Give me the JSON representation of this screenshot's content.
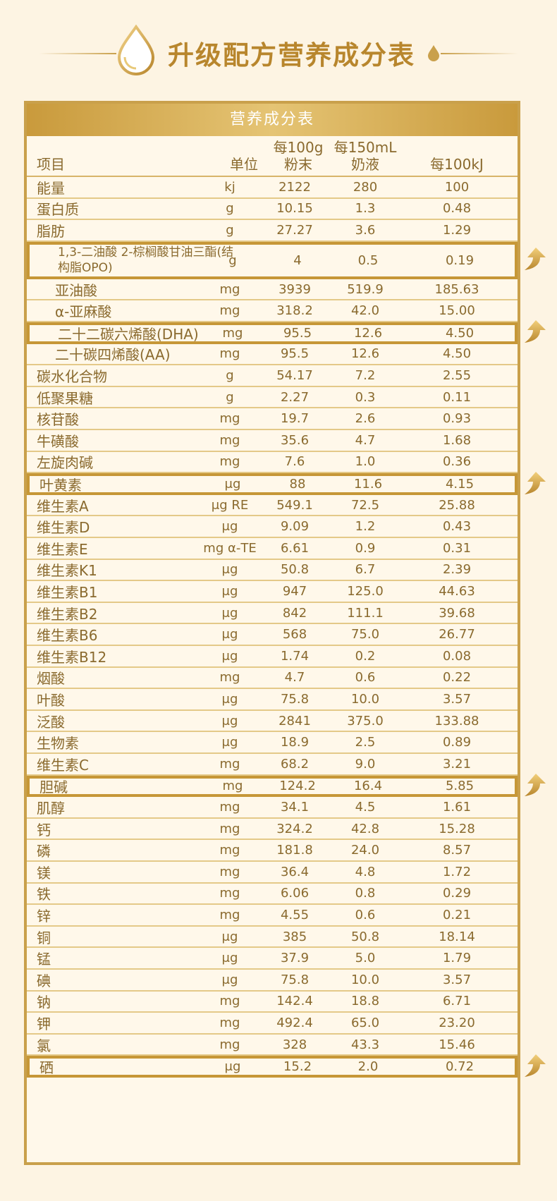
{
  "page": {
    "title": "升级配方营养成分表"
  },
  "table": {
    "header": "营养成分表",
    "columns": {
      "item": "项目",
      "unit": "单位",
      "powder_line1": "每100g",
      "powder_line2": "粉末",
      "liquid_line1": "每150mL",
      "liquid_line2": "奶液",
      "energy": "每100kJ"
    },
    "rows": [
      {
        "name": "能量",
        "unit": "kj",
        "v1": "2122",
        "v2": "280",
        "v3": "100"
      },
      {
        "name": "蛋白质",
        "unit": "g",
        "v1": "10.15",
        "v2": "1.3",
        "v3": "0.48"
      },
      {
        "name": "脂肪",
        "unit": "g",
        "v1": "27.27",
        "v2": "3.6",
        "v3": "1.29"
      },
      {
        "name": "1,3-二油酸 2-棕榈酸甘油三酯(结构脂OPO)",
        "unit": "g",
        "v1": "4",
        "v2": "0.5",
        "v3": "0.19",
        "indent": true,
        "tall": true,
        "highlight": true
      },
      {
        "name": "亚油酸",
        "unit": "mg",
        "v1": "3939",
        "v2": "519.9",
        "v3": "185.63",
        "indent": true
      },
      {
        "name": "α-亚麻酸",
        "unit": "mg",
        "v1": "318.2",
        "v2": "42.0",
        "v3": "15.00",
        "indent": true
      },
      {
        "name": "二十二碳六烯酸(DHA)",
        "unit": "mg",
        "v1": "95.5",
        "v2": "12.6",
        "v3": "4.50",
        "indent": true,
        "highlight": true
      },
      {
        "name": "二十碳四烯酸(AA)",
        "unit": "mg",
        "v1": "95.5",
        "v2": "12.6",
        "v3": "4.50",
        "indent": true
      },
      {
        "name": "碳水化合物",
        "unit": "g",
        "v1": "54.17",
        "v2": "7.2",
        "v3": "2.55"
      },
      {
        "name": "低聚果糖",
        "unit": "g",
        "v1": "2.27",
        "v2": "0.3",
        "v3": "0.11"
      },
      {
        "name": "核苷酸",
        "unit": "mg",
        "v1": "19.7",
        "v2": "2.6",
        "v3": "0.93"
      },
      {
        "name": "牛磺酸",
        "unit": "mg",
        "v1": "35.6",
        "v2": "4.7",
        "v3": "1.68"
      },
      {
        "name": "左旋肉碱",
        "unit": "mg",
        "v1": "7.6",
        "v2": "1.0",
        "v3": "0.36"
      },
      {
        "name": "叶黄素",
        "unit": "μg",
        "v1": "88",
        "v2": "11.6",
        "v3": "4.15",
        "highlight": true
      },
      {
        "name": "维生素A",
        "unit": "μg RE",
        "v1": "549.1",
        "v2": "72.5",
        "v3": "25.88"
      },
      {
        "name": "维生素D",
        "unit": "μg",
        "v1": "9.09",
        "v2": "1.2",
        "v3": "0.43"
      },
      {
        "name": "维生素E",
        "unit": "mg α-TE",
        "v1": "6.61",
        "v2": "0.9",
        "v3": "0.31"
      },
      {
        "name": "维生素K1",
        "unit": "μg",
        "v1": "50.8",
        "v2": "6.7",
        "v3": "2.39"
      },
      {
        "name": "维生素B1",
        "unit": "μg",
        "v1": "947",
        "v2": "125.0",
        "v3": "44.63"
      },
      {
        "name": "维生素B2",
        "unit": "μg",
        "v1": "842",
        "v2": "111.1",
        "v3": "39.68"
      },
      {
        "name": "维生素B6",
        "unit": "μg",
        "v1": "568",
        "v2": "75.0",
        "v3": "26.77"
      },
      {
        "name": "维生素B12",
        "unit": "μg",
        "v1": "1.74",
        "v2": "0.2",
        "v3": "0.08"
      },
      {
        "name": "烟酸",
        "unit": "mg",
        "v1": "4.7",
        "v2": "0.6",
        "v3": "0.22"
      },
      {
        "name": "叶酸",
        "unit": "μg",
        "v1": "75.8",
        "v2": "10.0",
        "v3": "3.57"
      },
      {
        "name": "泛酸",
        "unit": "μg",
        "v1": "2841",
        "v2": "375.0",
        "v3": "133.88"
      },
      {
        "name": "生物素",
        "unit": "μg",
        "v1": "18.9",
        "v2": "2.5",
        "v3": "0.89"
      },
      {
        "name": "维生素C",
        "unit": "mg",
        "v1": "68.2",
        "v2": "9.0",
        "v3": "3.21"
      },
      {
        "name": "胆碱",
        "unit": "mg",
        "v1": "124.2",
        "v2": "16.4",
        "v3": "5.85",
        "highlight": true
      },
      {
        "name": "肌醇",
        "unit": "mg",
        "v1": "34.1",
        "v2": "4.5",
        "v3": "1.61"
      },
      {
        "name": "钙",
        "unit": "mg",
        "v1": "324.2",
        "v2": "42.8",
        "v3": "15.28"
      },
      {
        "name": "磷",
        "unit": "mg",
        "v1": "181.8",
        "v2": "24.0",
        "v3": "8.57"
      },
      {
        "name": "镁",
        "unit": "mg",
        "v1": "36.4",
        "v2": "4.8",
        "v3": "1.72"
      },
      {
        "name": "铁",
        "unit": "mg",
        "v1": "6.06",
        "v2": "0.8",
        "v3": "0.29"
      },
      {
        "name": "锌",
        "unit": "mg",
        "v1": "4.55",
        "v2": "0.6",
        "v3": "0.21"
      },
      {
        "name": "铜",
        "unit": "μg",
        "v1": "385",
        "v2": "50.8",
        "v3": "18.14"
      },
      {
        "name": "锰",
        "unit": "μg",
        "v1": "37.9",
        "v2": "5.0",
        "v3": "1.79"
      },
      {
        "name": "碘",
        "unit": "μg",
        "v1": "75.8",
        "v2": "10.0",
        "v3": "3.57"
      },
      {
        "name": "钠",
        "unit": "mg",
        "v1": "142.4",
        "v2": "18.8",
        "v3": "6.71"
      },
      {
        "name": "钾",
        "unit": "mg",
        "v1": "492.4",
        "v2": "65.0",
        "v3": "23.20"
      },
      {
        "name": "氯",
        "unit": "mg",
        "v1": "328",
        "v2": "43.3",
        "v3": "15.46"
      },
      {
        "name": "硒",
        "unit": "μg",
        "v1": "15.2",
        "v2": "2.0",
        "v3": "0.72",
        "highlight": true
      }
    ]
  },
  "colors": {
    "gold": "#c9a04b",
    "text": "#8a6a2e",
    "background": "#fdf4e3"
  },
  "icons": {
    "title_decoration": "milk-drop-icon",
    "highlight_marker": "upgrade-arrow-icon"
  }
}
